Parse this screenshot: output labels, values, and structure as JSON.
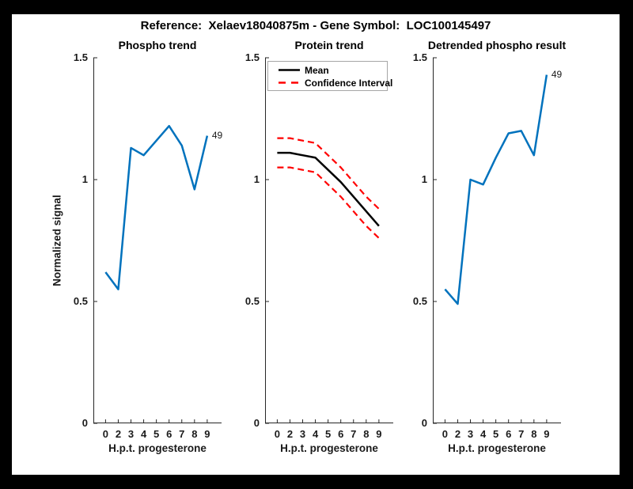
{
  "window": {
    "background": "#000000",
    "canvas_background": "#ffffff"
  },
  "title": "Reference:  Xelaev18040875m - Gene Symbol:  LOC100145497",
  "axes": {
    "ylabel": "Normalized signal",
    "xlabel": "H.p.t. progesterone",
    "ylim": [
      0,
      1.5
    ],
    "yticks": [
      0,
      0.5,
      1,
      1.5
    ],
    "ytick_labels": [
      "0",
      "0.5",
      "1",
      "1.5"
    ],
    "xtick_labels": [
      "0",
      "2",
      "3",
      "4",
      "5",
      "6",
      "7",
      "8",
      "9"
    ],
    "grid": false
  },
  "colors": {
    "line_blue": "#0072BD",
    "mean_black": "#000000",
    "ci_red": "#FF0000",
    "axis": "#262626"
  },
  "chart_data": [
    {
      "type": "line",
      "title": "Phospho trend",
      "xlabel": "H.p.t. progesterone",
      "ylabel": "Normalized signal",
      "x_labels": [
        "0",
        "2",
        "3",
        "4",
        "5",
        "6",
        "7",
        "8",
        "9"
      ],
      "ylim": [
        0,
        1.5
      ],
      "end_label": "49",
      "series": [
        {
          "name": "49",
          "color": "#0072BD",
          "dash": "solid",
          "values": [
            0.62,
            0.55,
            1.13,
            1.1,
            1.16,
            1.22,
            1.14,
            0.96,
            1.18
          ]
        }
      ]
    },
    {
      "type": "line",
      "title": "Protein trend",
      "xlabel": "H.p.t. progesterone",
      "x_labels": [
        "0",
        "2",
        "3",
        "4",
        "5",
        "6",
        "7",
        "8",
        "9"
      ],
      "ylim": [
        0,
        1.5
      ],
      "legend": {
        "position": "top-left",
        "entries": [
          {
            "label": "Mean",
            "color": "#000000",
            "dash": "solid"
          },
          {
            "label": "Confidence Interval",
            "color": "#FF0000",
            "dash": "dashed"
          }
        ]
      },
      "series": [
        {
          "name": "Confidence Interval (upper)",
          "color": "#FF0000",
          "dash": "dashed",
          "values": [
            1.17,
            1.17,
            1.16,
            1.15,
            1.1,
            1.05,
            0.99,
            0.93,
            0.88
          ]
        },
        {
          "name": "Confidence Interval (lower)",
          "color": "#FF0000",
          "dash": "dashed",
          "values": [
            1.05,
            1.05,
            1.04,
            1.03,
            0.98,
            0.93,
            0.87,
            0.81,
            0.76
          ]
        },
        {
          "name": "Mean",
          "color": "#000000",
          "dash": "solid",
          "values": [
            1.11,
            1.11,
            1.1,
            1.09,
            1.04,
            0.99,
            0.93,
            0.87,
            0.81
          ]
        }
      ]
    },
    {
      "type": "line",
      "title": "Detrended phospho result",
      "xlabel": "H.p.t. progesterone",
      "x_labels": [
        "0",
        "2",
        "3",
        "4",
        "5",
        "6",
        "7",
        "8",
        "9"
      ],
      "ylim": [
        0,
        1.5
      ],
      "end_label": "49",
      "series": [
        {
          "name": "49",
          "color": "#0072BD",
          "dash": "solid",
          "values": [
            0.55,
            0.49,
            1.0,
            0.98,
            1.09,
            1.19,
            1.2,
            1.1,
            1.43
          ]
        }
      ]
    }
  ]
}
